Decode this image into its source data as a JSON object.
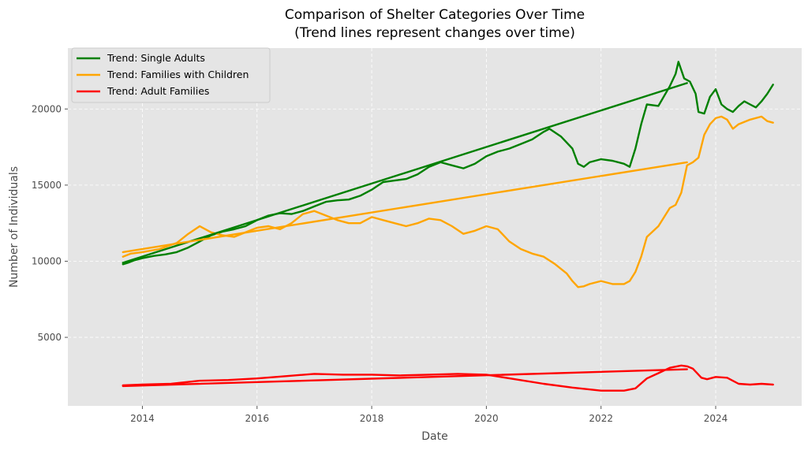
{
  "chart_data": {
    "type": "line",
    "title": "Comparison of Shelter Categories Over Time",
    "subtitle": "(Trend lines represent changes over time)",
    "xlabel": "Date",
    "ylabel": "Number of Individuals",
    "xlim": [
      2012.7,
      2025.5
    ],
    "ylim": [
      500,
      24000
    ],
    "xticks": [
      2014,
      2016,
      2018,
      2020,
      2022,
      2024
    ],
    "yticks": [
      5000,
      10000,
      15000,
      20000
    ],
    "grid": true,
    "legend_position": "top-left",
    "series": [
      {
        "name": "Trend: Single Adults",
        "color": "#008000",
        "x": [
          2013.66,
          2013.75,
          2013.85,
          2014.0,
          2014.2,
          2014.4,
          2014.6,
          2014.8,
          2015.0,
          2015.2,
          2015.4,
          2015.6,
          2015.8,
          2016.0,
          2016.2,
          2016.4,
          2016.6,
          2016.8,
          2017.0,
          2017.2,
          2017.4,
          2017.6,
          2017.8,
          2018.0,
          2018.2,
          2018.4,
          2018.6,
          2018.8,
          2019.0,
          2019.2,
          2019.4,
          2019.6,
          2019.8,
          2020.0,
          2020.2,
          2020.4,
          2020.6,
          2020.8,
          2021.0,
          2021.1,
          2021.3,
          2021.5,
          2021.6,
          2021.7,
          2021.8,
          2022.0,
          2022.2,
          2022.4,
          2022.5,
          2022.6,
          2022.7,
          2022.8,
          2023.0,
          2023.2,
          2023.3,
          2023.35,
          2023.45,
          2023.55,
          2023.65,
          2023.7,
          2023.8,
          2023.9,
          2024.0,
          2024.1,
          2024.2,
          2024.3,
          2024.4,
          2024.5,
          2024.6,
          2024.7,
          2024.8,
          2024.9,
          2025.0
        ],
        "values": [
          9800,
          9900,
          10050,
          10200,
          10350,
          10450,
          10600,
          10900,
          11300,
          11700,
          11950,
          12100,
          12300,
          12700,
          13000,
          13150,
          13100,
          13300,
          13600,
          13900,
          14000,
          14050,
          14300,
          14700,
          15200,
          15300,
          15400,
          15700,
          16200,
          16500,
          16300,
          16100,
          16400,
          16900,
          17200,
          17400,
          17700,
          18000,
          18500,
          18700,
          18200,
          17400,
          16400,
          16200,
          16500,
          16700,
          16600,
          16400,
          16200,
          17400,
          19000,
          20300,
          20200,
          21500,
          22300,
          23100,
          22000,
          21800,
          21000,
          19800,
          19700,
          20800,
          21300,
          20300,
          20000,
          19800,
          20200,
          20500,
          20300,
          20100,
          20500,
          21000,
          21600
        ]
      },
      {
        "name": "Trend: Families with Children",
        "color": "#ffa500",
        "x": [
          2013.66,
          2013.8,
          2014.0,
          2014.3,
          2014.6,
          2014.8,
          2015.0,
          2015.2,
          2015.4,
          2015.6,
          2015.8,
          2016.0,
          2016.2,
          2016.4,
          2016.6,
          2016.8,
          2017.0,
          2017.2,
          2017.4,
          2017.6,
          2017.8,
          2018.0,
          2018.2,
          2018.4,
          2018.6,
          2018.8,
          2019.0,
          2019.2,
          2019.4,
          2019.6,
          2019.8,
          2020.0,
          2020.2,
          2020.4,
          2020.6,
          2020.8,
          2021.0,
          2021.2,
          2021.4,
          2021.5,
          2021.6,
          2021.7,
          2021.8,
          2022.0,
          2022.2,
          2022.4,
          2022.5,
          2022.6,
          2022.7,
          2022.8,
          2023.0,
          2023.2,
          2023.3,
          2023.4,
          2023.5,
          2023.6,
          2023.7,
          2023.8,
          2023.9,
          2024.0,
          2024.1,
          2024.2,
          2024.3,
          2024.4,
          2024.6,
          2024.8,
          2024.9,
          2025.0
        ],
        "values": [
          10300,
          10500,
          10600,
          10800,
          11200,
          11800,
          12300,
          11900,
          11700,
          11600,
          11900,
          12200,
          12300,
          12100,
          12500,
          13100,
          13300,
          13000,
          12700,
          12500,
          12500,
          12900,
          12700,
          12500,
          12300,
          12500,
          12800,
          12700,
          12300,
          11800,
          12000,
          12300,
          12100,
          11300,
          10800,
          10500,
          10300,
          9800,
          9200,
          8700,
          8300,
          8350,
          8500,
          8700,
          8500,
          8500,
          8700,
          9300,
          10300,
          11600,
          12300,
          13500,
          13700,
          14500,
          16300,
          16500,
          16800,
          18300,
          19000,
          19400,
          19500,
          19300,
          18700,
          19000,
          19300,
          19500,
          19200,
          19100
        ]
      },
      {
        "name": "Trend: Adult Families",
        "color": "#ff0000",
        "x": [
          2013.66,
          2014.0,
          2014.5,
          2015.0,
          2015.5,
          2016.0,
          2016.5,
          2017.0,
          2017.5,
          2018.0,
          2018.5,
          2019.0,
          2019.5,
          2020.0,
          2020.5,
          2021.0,
          2021.5,
          2022.0,
          2022.4,
          2022.6,
          2022.8,
          2023.0,
          2023.2,
          2023.4,
          2023.5,
          2023.6,
          2023.75,
          2023.85,
          2024.0,
          2024.2,
          2024.4,
          2024.6,
          2024.8,
          2025.0
        ],
        "values": [
          1850,
          1900,
          1950,
          2150,
          2200,
          2300,
          2450,
          2600,
          2550,
          2550,
          2500,
          2550,
          2600,
          2550,
          2250,
          1950,
          1700,
          1500,
          1500,
          1650,
          2300,
          2650,
          3000,
          3150,
          3100,
          2950,
          2350,
          2250,
          2400,
          2350,
          1950,
          1900,
          1950,
          1900
        ]
      },
      {
        "name": "Single Adults trend line",
        "color": "#008000",
        "x": [
          2013.66,
          2023.5
        ],
        "values": [
          9900,
          21700
        ]
      },
      {
        "name": "Families with Children trend line",
        "color": "#ffa500",
        "x": [
          2013.66,
          2023.5
        ],
        "values": [
          10600,
          16500
        ]
      },
      {
        "name": "Adult Families trend line",
        "color": "#ff0000",
        "x": [
          2013.66,
          2023.5
        ],
        "values": [
          1800,
          2900
        ]
      }
    ],
    "legend": [
      {
        "label": "Trend: Single Adults",
        "color": "#008000"
      },
      {
        "label": "Trend: Families with Children",
        "color": "#ffa500"
      },
      {
        "label": "Trend: Adult Families",
        "color": "#ff0000"
      }
    ]
  }
}
